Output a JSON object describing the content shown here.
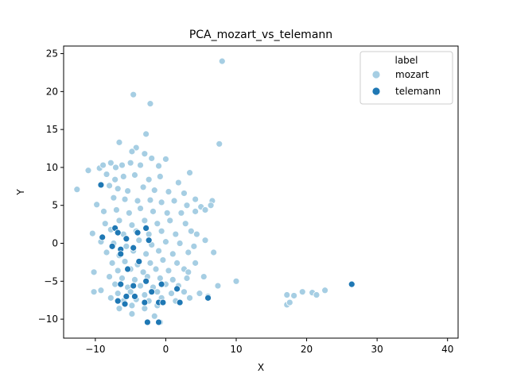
{
  "chart_data": {
    "type": "scatter",
    "title": "PCA_mozart_vs_telemann",
    "xlabel": "X",
    "ylabel": "Y",
    "xlim": [
      -14.5,
      41.5
    ],
    "ylim": [
      -12.5,
      26.0
    ],
    "xticks": [
      -10,
      0,
      10,
      20,
      30,
      40
    ],
    "yticks": [
      -10,
      -5,
      0,
      5,
      10,
      15,
      20,
      25
    ],
    "grid": false,
    "legend": {
      "title": "label",
      "position": "top-right",
      "entries": [
        {
          "name": "mozart",
          "color": "#a6cee3"
        },
        {
          "name": "telemann",
          "color": "#1f78b4"
        }
      ]
    },
    "series": [
      {
        "name": "mozart",
        "color": "#a6cee3",
        "points": [
          [
            8.0,
            24.0
          ],
          [
            -4.6,
            19.6
          ],
          [
            -2.2,
            18.4
          ],
          [
            -2.8,
            14.4
          ],
          [
            7.6,
            13.1
          ],
          [
            -6.6,
            13.3
          ],
          [
            -4.2,
            12.6
          ],
          [
            -4.8,
            12.1
          ],
          [
            -3.0,
            11.8
          ],
          [
            -2.0,
            11.2
          ],
          [
            0.0,
            11.1
          ],
          [
            -11.0,
            9.6
          ],
          [
            -9.4,
            9.9
          ],
          [
            -8.9,
            10.3
          ],
          [
            -7.8,
            10.6
          ],
          [
            -7.1,
            10.0
          ],
          [
            -6.2,
            10.3
          ],
          [
            -5.0,
            10.6
          ],
          [
            -3.6,
            10.3
          ],
          [
            -1.0,
            10.2
          ],
          [
            3.4,
            9.3
          ],
          [
            -12.6,
            7.1
          ],
          [
            -9.8,
            5.1
          ],
          [
            -8.4,
            9.1
          ],
          [
            -7.2,
            8.4
          ],
          [
            -6.0,
            8.8
          ],
          [
            -4.4,
            9.0
          ],
          [
            -2.4,
            8.4
          ],
          [
            -0.8,
            8.8
          ],
          [
            1.8,
            8.0
          ],
          [
            -8.0,
            7.6
          ],
          [
            -6.8,
            7.2
          ],
          [
            -5.4,
            6.9
          ],
          [
            -3.2,
            7.4
          ],
          [
            -1.6,
            7.0
          ],
          [
            0.4,
            6.8
          ],
          [
            2.6,
            6.6
          ],
          [
            4.2,
            5.8
          ],
          [
            6.6,
            5.6
          ],
          [
            -7.4,
            6.0
          ],
          [
            -5.8,
            5.8
          ],
          [
            -4.0,
            5.6
          ],
          [
            -2.2,
            5.7
          ],
          [
            -0.6,
            5.4
          ],
          [
            1.2,
            5.6
          ],
          [
            3.0,
            5.0
          ],
          [
            5.0,
            4.8
          ],
          [
            6.4,
            5.0
          ],
          [
            -8.8,
            4.2
          ],
          [
            -7.0,
            4.4
          ],
          [
            -5.2,
            4.0
          ],
          [
            -3.6,
            4.6
          ],
          [
            -1.8,
            4.2
          ],
          [
            0.2,
            4.0
          ],
          [
            2.2,
            4.0
          ],
          [
            4.2,
            4.2
          ],
          [
            5.6,
            4.4
          ],
          [
            -8.6,
            2.6
          ],
          [
            -6.6,
            3.0
          ],
          [
            -4.8,
            2.4
          ],
          [
            -3.0,
            3.0
          ],
          [
            -1.2,
            2.6
          ],
          [
            0.6,
            3.0
          ],
          [
            2.8,
            2.6
          ],
          [
            -10.4,
            1.3
          ],
          [
            -7.8,
            1.8
          ],
          [
            -6.0,
            1.2
          ],
          [
            -4.2,
            1.6
          ],
          [
            -2.4,
            1.2
          ],
          [
            -0.6,
            1.6
          ],
          [
            1.4,
            1.2
          ],
          [
            3.6,
            1.6
          ],
          [
            4.4,
            1.2
          ],
          [
            -9.2,
            0.2
          ],
          [
            -7.4,
            0.0
          ],
          [
            -5.6,
            -0.4
          ],
          [
            -3.8,
            0.4
          ],
          [
            -2.0,
            -0.2
          ],
          [
            0.0,
            0.2
          ],
          [
            2.0,
            0.0
          ],
          [
            4.0,
            -0.4
          ],
          [
            5.6,
            0.4
          ],
          [
            -8.4,
            -1.2
          ],
          [
            -6.6,
            -1.6
          ],
          [
            -4.6,
            -1.0
          ],
          [
            -2.8,
            -1.4
          ],
          [
            -1.0,
            -1.0
          ],
          [
            1.0,
            -1.4
          ],
          [
            3.2,
            -1.2
          ],
          [
            6.8,
            -1.2
          ],
          [
            -7.6,
            -2.6
          ],
          [
            -5.8,
            -2.4
          ],
          [
            -4.0,
            -2.8
          ],
          [
            -2.2,
            -2.6
          ],
          [
            -0.4,
            -2.2
          ],
          [
            1.6,
            -2.6
          ],
          [
            4.2,
            -2.6
          ],
          [
            -6.8,
            -3.6
          ],
          [
            -5.0,
            -3.4
          ],
          [
            -3.2,
            -3.8
          ],
          [
            -1.4,
            -3.4
          ],
          [
            0.4,
            -3.6
          ],
          [
            2.6,
            -3.4
          ],
          [
            3.2,
            -3.8
          ],
          [
            -10.2,
            -3.8
          ],
          [
            -8.0,
            -4.4
          ],
          [
            -6.2,
            -4.6
          ],
          [
            -4.4,
            -4.8
          ],
          [
            -2.6,
            -4.4
          ],
          [
            -0.8,
            -4.6
          ],
          [
            1.0,
            -4.8
          ],
          [
            3.0,
            -4.6
          ],
          [
            5.4,
            -4.4
          ],
          [
            10.0,
            -5.0
          ],
          [
            -7.2,
            -5.4
          ],
          [
            -5.4,
            -5.8
          ],
          [
            -3.6,
            -5.6
          ],
          [
            -1.8,
            -5.8
          ],
          [
            0.0,
            -5.4
          ],
          [
            1.8,
            -5.6
          ],
          [
            -9.2,
            -6.2
          ],
          [
            -6.8,
            -6.6
          ],
          [
            -5.0,
            -6.4
          ],
          [
            -3.0,
            -6.8
          ],
          [
            -1.2,
            -6.4
          ],
          [
            0.8,
            -6.6
          ],
          [
            2.6,
            -6.4
          ],
          [
            4.8,
            -6.6
          ],
          [
            7.4,
            -5.6
          ],
          [
            -10.2,
            -6.4
          ],
          [
            -7.8,
            -7.2
          ],
          [
            -6.0,
            -7.6
          ],
          [
            -4.2,
            -7.4
          ],
          [
            -2.4,
            -7.6
          ],
          [
            -0.6,
            -7.2
          ],
          [
            1.4,
            -7.6
          ],
          [
            3.4,
            -7.2
          ],
          [
            6.0,
            -7.0
          ],
          [
            -6.6,
            -8.6
          ],
          [
            -4.8,
            -8.2
          ],
          [
            -3.0,
            -8.6
          ],
          [
            -1.2,
            -8.2
          ],
          [
            -4.8,
            -9.3
          ],
          [
            -1.6,
            -9.6
          ],
          [
            -0.8,
            -10.4
          ],
          [
            17.2,
            -6.8
          ],
          [
            17.2,
            -8.1
          ],
          [
            18.2,
            -6.9
          ],
          [
            19.4,
            -6.4
          ],
          [
            20.8,
            -6.5
          ],
          [
            21.4,
            -6.8
          ],
          [
            22.6,
            -6.2
          ],
          [
            17.6,
            -7.8
          ]
        ]
      },
      {
        "name": "telemann",
        "color": "#1f78b4",
        "points": [
          [
            -9.2,
            7.7
          ],
          [
            -7.2,
            2.0
          ],
          [
            -6.8,
            1.4
          ],
          [
            -9.0,
            0.8
          ],
          [
            -5.6,
            0.6
          ],
          [
            -4.0,
            1.4
          ],
          [
            -2.8,
            2.0
          ],
          [
            -4.6,
            -0.6
          ],
          [
            -6.4,
            -0.8
          ],
          [
            -6.4,
            -1.4
          ],
          [
            -7.6,
            -0.4
          ],
          [
            -2.4,
            0.4
          ],
          [
            -5.4,
            -3.4
          ],
          [
            -3.8,
            -2.4
          ],
          [
            -6.4,
            -5.4
          ],
          [
            -4.6,
            -5.6
          ],
          [
            -2.8,
            -5.0
          ],
          [
            -0.6,
            -5.4
          ],
          [
            -5.6,
            -7.0
          ],
          [
            -6.8,
            -7.6
          ],
          [
            -4.4,
            -7.0
          ],
          [
            -2.0,
            -6.4
          ],
          [
            -1.0,
            -7.8
          ],
          [
            -3.0,
            -7.8
          ],
          [
            -0.4,
            -7.8
          ],
          [
            1.6,
            -6.0
          ],
          [
            2.0,
            -7.8
          ],
          [
            -5.8,
            -8.0
          ],
          [
            -2.6,
            -10.4
          ],
          [
            -1.0,
            -10.4
          ],
          [
            6.0,
            -7.2
          ],
          [
            26.4,
            -5.4
          ]
        ]
      }
    ]
  }
}
